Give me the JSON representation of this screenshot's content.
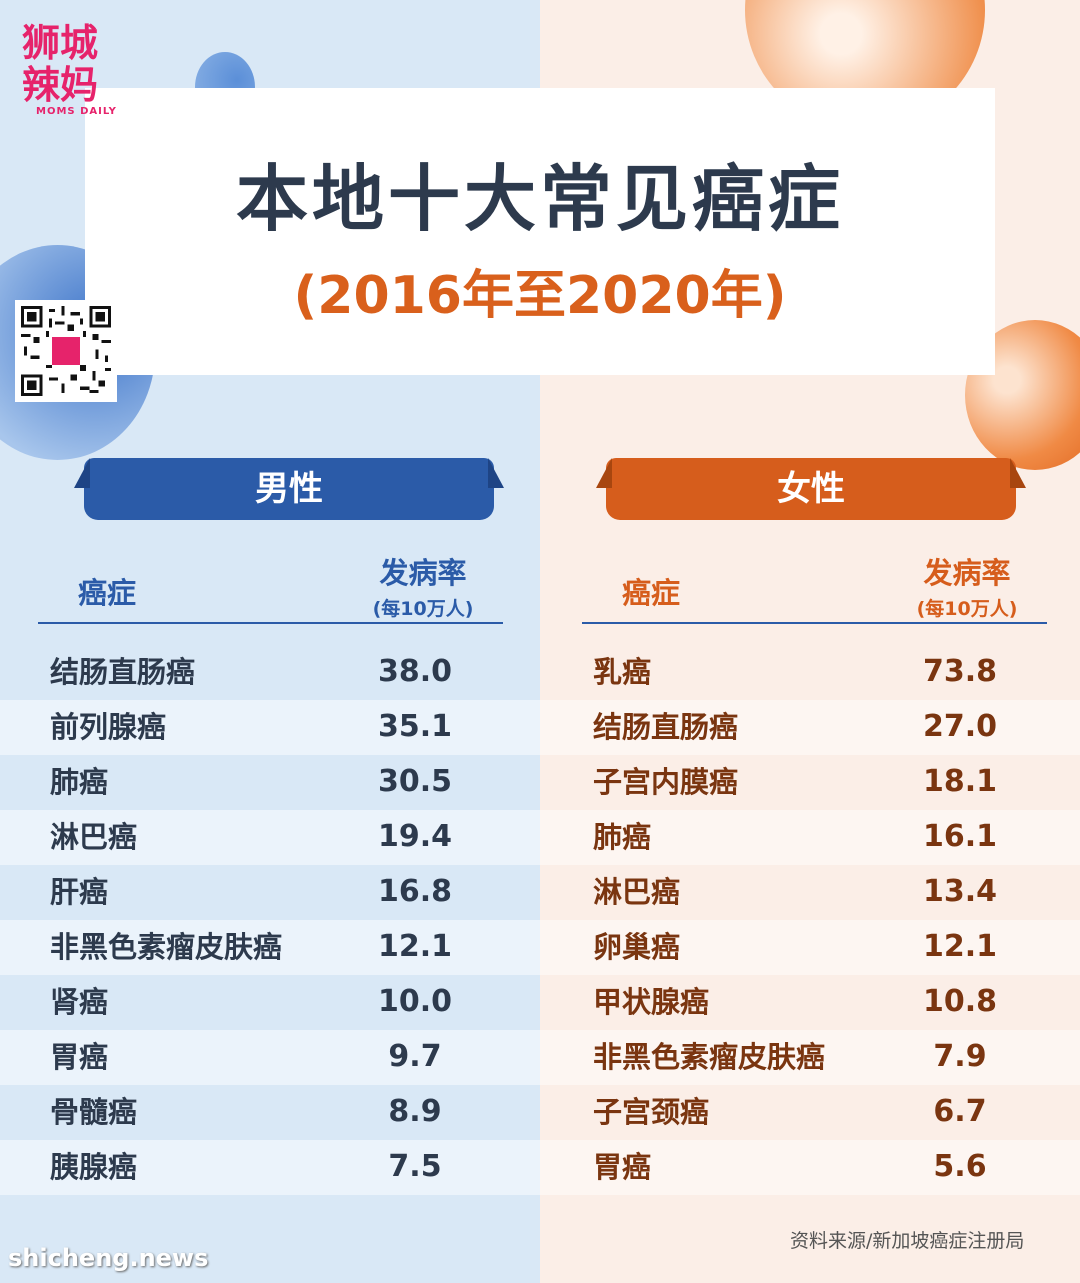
{
  "logo": {
    "line1": "狮城",
    "line2": "辣妈",
    "en": "MOMS DAILY"
  },
  "title": {
    "main": "本地十大常见癌症",
    "sub": "(2016年至2020年)"
  },
  "colors": {
    "male": "#2b5ba8",
    "female": "#d65d1c",
    "title": "#2d3a4d",
    "subtitle": "#d9601c"
  },
  "male": {
    "label": "男性",
    "header_name": "癌症",
    "header_rate": "发病率",
    "header_unit": "(每10万人)",
    "rows": [
      {
        "name": "结肠直肠癌",
        "value": "38.0"
      },
      {
        "name": "前列腺癌",
        "value": "35.1"
      },
      {
        "name": "肺癌",
        "value": "30.5"
      },
      {
        "name": "淋巴癌",
        "value": "19.4"
      },
      {
        "name": "肝癌",
        "value": "16.8"
      },
      {
        "name": "非黑色素瘤皮肤癌",
        "value": "12.1"
      },
      {
        "name": "肾癌",
        "value": "10.0"
      },
      {
        "name": "胃癌",
        "value": "9.7"
      },
      {
        "name": "骨髓癌",
        "value": "8.9"
      },
      {
        "name": "胰腺癌",
        "value": "7.5"
      }
    ]
  },
  "female": {
    "label": "女性",
    "header_name": "癌症",
    "header_rate": "发病率",
    "header_unit": "(每10万人)",
    "rows": [
      {
        "name": "乳癌",
        "value": "73.8"
      },
      {
        "name": "结肠直肠癌",
        "value": "27.0"
      },
      {
        "name": "子宫内膜癌",
        "value": "18.1"
      },
      {
        "name": "肺癌",
        "value": "16.1"
      },
      {
        "name": "淋巴癌",
        "value": "13.4"
      },
      {
        "name": "卵巢癌",
        "value": "12.1"
      },
      {
        "name": "甲状腺癌",
        "value": "10.8"
      },
      {
        "name": "非黑色素瘤皮肤癌",
        "value": "7.9"
      },
      {
        "name": "子宫颈癌",
        "value": "6.7"
      },
      {
        "name": "胃癌",
        "value": "5.6"
      }
    ]
  },
  "source": "资料来源/新加坡癌症注册局",
  "watermark": "shicheng.news"
}
